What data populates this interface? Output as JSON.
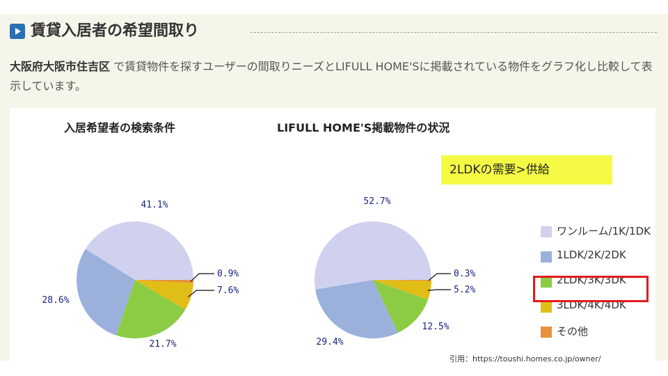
{
  "page": {
    "title": "賃貸入居者の希望間取り",
    "description_strong": "大阪府大阪市住吉区",
    "description_rest": " で賃貸物件を探すユーザーの間取りニーズとLIFULL HOME'Sに掲載されている物件をグラフ化し比較して表示しています。",
    "callout": "2LDKの需要>供給",
    "source": "引用：https://toushi.homes.co.jp/owner/",
    "icon": "play-icon",
    "accent_color": "#2a6fb4",
    "highlight_color": "#e3191c"
  },
  "chart_data": [
    {
      "type": "pie",
      "title": "入居希望者の検索条件",
      "slices": [
        {
          "label": "ワンルーム/1K/1DK",
          "value": 41.1,
          "display": "41.1%",
          "color": "#cfd1ee"
        },
        {
          "label": "1LDK/2K/2DK",
          "value": 28.6,
          "display": "28.6%",
          "color": "#9bb1dc"
        },
        {
          "label": "2LDK/3K/3DK",
          "value": 21.7,
          "display": "21.7%",
          "color": "#8ccc45"
        },
        {
          "label": "3LDK/4K/4DK",
          "value": 7.6,
          "display": "7.6%",
          "color": "#e1bd18"
        },
        {
          "label": "その他",
          "value": 0.9,
          "display": "0.9%",
          "color": "#e6923a"
        }
      ]
    },
    {
      "type": "pie",
      "title": "LIFULL HOME'S掲載物件の状況",
      "slices": [
        {
          "label": "ワンルーム/1K/1DK",
          "value": 52.7,
          "display": "52.7%",
          "color": "#cfd1ee"
        },
        {
          "label": "1LDK/2K/2DK",
          "value": 29.4,
          "display": "29.4%",
          "color": "#9bb1dc"
        },
        {
          "label": "2LDK/3K/3DK",
          "value": 12.5,
          "display": "12.5%",
          "color": "#8ccc45"
        },
        {
          "label": "3LDK/4K/4DK",
          "value": 5.2,
          "display": "5.2%",
          "color": "#e1bd18"
        },
        {
          "label": "その他",
          "value": 0.3,
          "display": "0.3%",
          "color": "#e6923a"
        }
      ]
    }
  ],
  "legend": [
    {
      "label": "ワンルーム/1K/1DK",
      "color": "#cfd1ee"
    },
    {
      "label": "1LDK/2K/2DK",
      "color": "#9bb1dc"
    },
    {
      "label": "2LDK/3K/3DK",
      "color": "#8ccc45"
    },
    {
      "label": "3LDK/4K/4DK",
      "color": "#e1bd18"
    },
    {
      "label": "その他",
      "color": "#e6923a"
    }
  ]
}
